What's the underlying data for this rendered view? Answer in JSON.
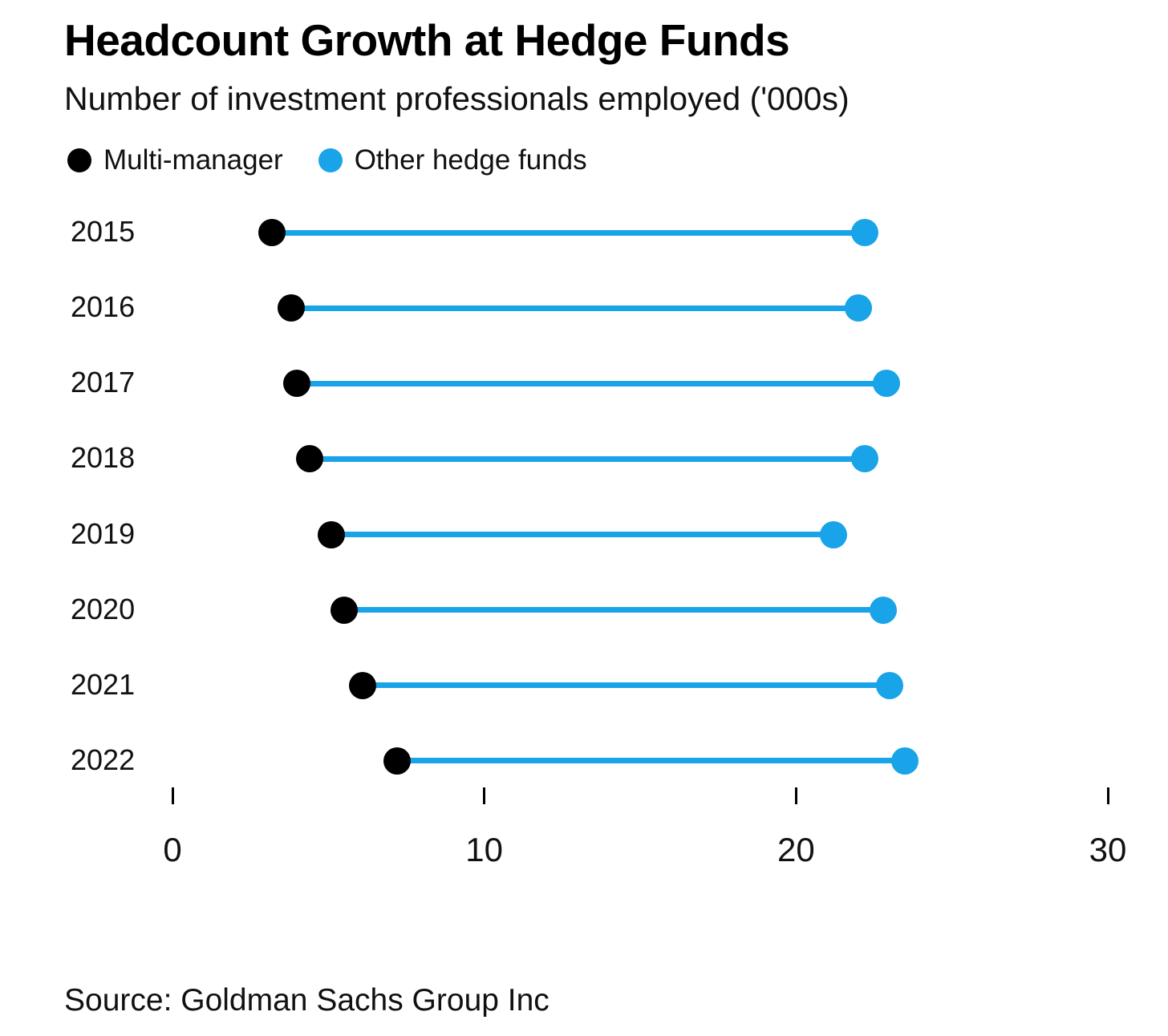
{
  "title": "Headcount Growth at Hedge Funds",
  "subtitle": "Number of investment professionals employed ('000s)",
  "legend": [
    {
      "label": "Multi-manager",
      "color": "#000000"
    },
    {
      "label": "Other hedge funds",
      "color": "#19a3e8"
    }
  ],
  "source": "Source: Goldman Sachs Group Inc",
  "colors": {
    "multi_manager": "#000000",
    "other_hedge_funds": "#19a3e8",
    "connector": "#19a3e8"
  },
  "chart_data": {
    "type": "dumbbell",
    "title": "Headcount Growth at Hedge Funds",
    "subtitle": "Number of investment professionals employed ('000s)",
    "categories": [
      "2015",
      "2016",
      "2017",
      "2018",
      "2019",
      "2020",
      "2021",
      "2022"
    ],
    "series": [
      {
        "name": "Multi-manager",
        "color": "#000000",
        "values": [
          3.2,
          3.8,
          4.0,
          4.4,
          5.1,
          5.5,
          6.1,
          7.2
        ]
      },
      {
        "name": "Other hedge funds",
        "color": "#19a3e8",
        "values": [
          22.2,
          22.0,
          22.9,
          22.2,
          21.2,
          22.8,
          23.0,
          23.5
        ]
      }
    ],
    "connector_color": "#19a3e8",
    "xlabel": "",
    "ylabel": "",
    "xlim": [
      0,
      30
    ],
    "xticks": [
      0,
      10,
      20,
      30
    ],
    "grid": false,
    "legend_position": "top-left",
    "source": "Source: Goldman Sachs Group Inc"
  }
}
